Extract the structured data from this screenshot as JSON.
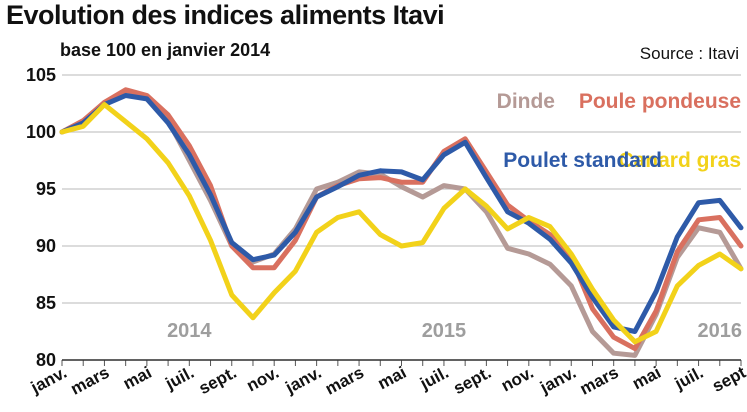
{
  "title": "Evolution des indices aliments Itavi",
  "subtitle": "base 100 en janvier 2014",
  "source": "Source : Itavi",
  "chart_data": {
    "type": "line",
    "ylim": [
      80,
      105
    ],
    "yticks": [
      80,
      85,
      90,
      95,
      100,
      105
    ],
    "grid": true,
    "x": [
      "2014-01",
      "2014-02",
      "2014-03",
      "2014-04",
      "2014-05",
      "2014-06",
      "2014-07",
      "2014-08",
      "2014-09",
      "2014-10",
      "2014-11",
      "2014-12",
      "2015-01",
      "2015-02",
      "2015-03",
      "2015-04",
      "2015-05",
      "2015-06",
      "2015-07",
      "2015-08",
      "2015-09",
      "2015-10",
      "2015-11",
      "2015-12",
      "2016-01",
      "2016-02",
      "2016-03",
      "2016-04",
      "2016-05",
      "2016-06",
      "2016-07",
      "2016-08",
      "2016-09"
    ],
    "xtick_labels": [
      "janv.",
      "mars",
      "mai",
      "juil.",
      "sept.",
      "nov.",
      "janv.",
      "mars",
      "mai",
      "juil.",
      "sept.",
      "nov.",
      "janv.",
      "mars",
      "mai",
      "juil.",
      "sept"
    ],
    "year_labels": [
      "2014",
      "2015",
      "2016"
    ],
    "series": [
      {
        "name": "Dinde",
        "color": "#b59a96",
        "values": [
          100,
          100.8,
          102.6,
          103.4,
          102.9,
          101.0,
          97.5,
          94.0,
          90.0,
          88.6,
          89.3,
          91.5,
          95.0,
          95.6,
          96.5,
          96.3,
          95.2,
          94.3,
          95.3,
          95.0,
          93.0,
          89.8,
          89.3,
          88.4,
          86.5,
          82.5,
          80.6,
          80.4,
          84.0,
          89.0,
          91.6,
          91.2,
          88.0
        ]
      },
      {
        "name": "Poule pondeuse",
        "color": "#d9705f",
        "values": [
          100,
          101.0,
          102.6,
          103.7,
          103.2,
          101.5,
          98.8,
          95.3,
          90.0,
          88.1,
          88.1,
          90.5,
          94.3,
          95.3,
          95.9,
          96.0,
          95.6,
          95.6,
          98.3,
          99.4,
          96.5,
          93.6,
          92.2,
          91.0,
          89.0,
          84.5,
          82.0,
          81.0,
          84.3,
          89.5,
          92.3,
          92.5,
          90.0
        ]
      },
      {
        "name": "Poulet standard",
        "color": "#2e5aa8",
        "values": [
          100,
          100.8,
          102.4,
          103.2,
          102.9,
          100.8,
          98.0,
          94.5,
          90.3,
          88.8,
          89.2,
          91.2,
          94.3,
          95.2,
          96.2,
          96.6,
          96.5,
          95.8,
          98.0,
          99.1,
          96.0,
          93.0,
          92.0,
          90.6,
          88.5,
          85.5,
          82.9,
          82.5,
          86.0,
          90.8,
          93.8,
          94.0,
          91.6
        ]
      },
      {
        "name": "Canard gras",
        "color": "#f2d21a",
        "values": [
          100,
          100.5,
          102.4,
          100.9,
          99.4,
          97.3,
          94.4,
          90.5,
          85.7,
          83.7,
          85.9,
          87.8,
          91.2,
          92.5,
          93.0,
          91.0,
          90.0,
          90.3,
          93.3,
          95.0,
          93.5,
          91.5,
          92.5,
          91.7,
          89.3,
          86.2,
          83.5,
          81.6,
          82.5,
          86.5,
          88.3,
          89.3,
          88.0
        ]
      }
    ]
  }
}
